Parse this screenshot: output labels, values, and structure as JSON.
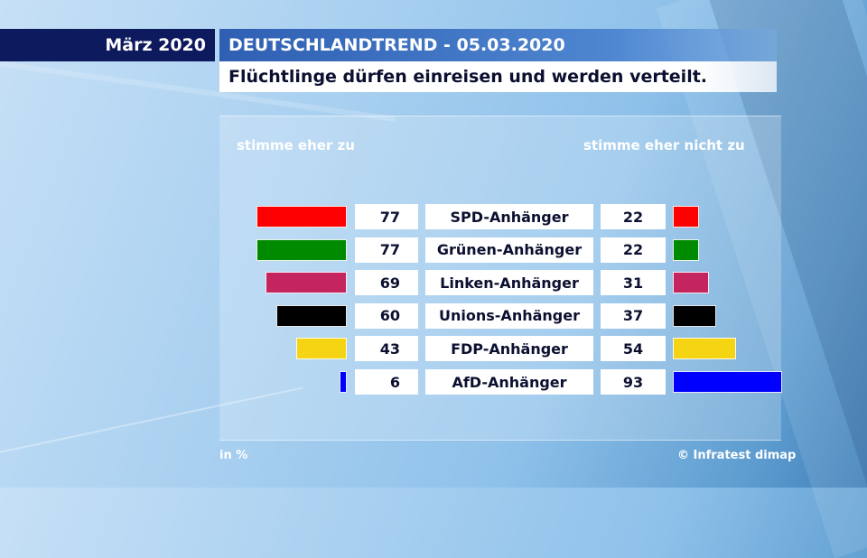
{
  "header": {
    "date": "März 2020",
    "title": "DEUTSCHLANDTREND - 05.03.2020",
    "subtitle": "Flüchtlinge dürfen einreisen und werden verteilt."
  },
  "legend": {
    "left": "stimme eher zu",
    "right": "stimme eher nicht zu"
  },
  "footer": {
    "unit": "in %",
    "source": "© Infratest dimap"
  },
  "chart_data": {
    "type": "bar",
    "categories": [
      "SPD-Anhänger",
      "Grünen-Anhänger",
      "Linken-Anhänger",
      "Unions-Anhänger",
      "FDP-Anhänger",
      "AfD-Anhänger"
    ],
    "colors": [
      "#ff0000",
      "#008a00",
      "#c4255e",
      "#000000",
      "#f5d414",
      "#0000ff"
    ],
    "series": [
      {
        "name": "stimme eher zu",
        "values": [
          77,
          77,
          69,
          60,
          43,
          6
        ]
      },
      {
        "name": "stimme eher nicht zu",
        "values": [
          22,
          22,
          31,
          37,
          54,
          93
        ]
      }
    ]
  }
}
